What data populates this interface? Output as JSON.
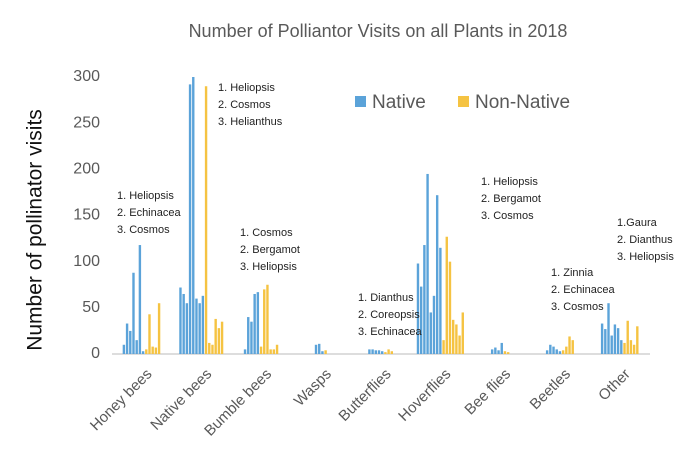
{
  "chart_data": {
    "type": "bar",
    "title": "Number of Polliantor Visits on all Plants in 2018",
    "y_label": "Number  of pollinator visits",
    "categories": [
      "Honey bees",
      "Native bees",
      "Bumble bees",
      "Wasps",
      "Butterflies",
      "Hoverflies",
      "Bee flies",
      "Beetles",
      "Other"
    ],
    "series": [
      {
        "name": "Native",
        "color": "#5ba3d9",
        "values": [
          [
            10,
            33,
            25,
            88,
            15,
            118,
            3
          ],
          [
            72,
            65,
            55,
            292,
            300,
            60,
            55,
            63
          ],
          [
            5,
            40,
            35,
            65,
            67
          ],
          [
            10,
            11,
            3
          ],
          [
            5,
            5,
            4,
            4,
            3
          ],
          [
            98,
            73,
            118,
            195,
            45,
            63,
            172,
            115
          ],
          [
            5,
            7,
            4,
            12
          ],
          [
            4,
            10,
            8,
            5,
            3
          ],
          [
            33,
            27,
            55,
            20,
            32,
            28,
            15
          ]
        ]
      },
      {
        "name": "Non-Native",
        "color": "#f5c342",
        "values": [
          [
            5,
            43,
            8,
            7,
            55
          ],
          [
            290,
            12,
            10,
            38,
            28,
            35
          ],
          [
            8,
            70,
            75,
            5,
            5,
            10
          ],
          [
            4
          ],
          [
            2,
            5,
            3
          ],
          [
            15,
            127,
            100,
            37,
            32,
            20,
            45
          ],
          [
            3,
            2
          ],
          [
            4,
            8,
            19,
            15
          ],
          [
            12,
            36,
            15,
            10,
            30
          ]
        ]
      }
    ],
    "annotations": [
      [
        "1. Heliopsis",
        "2. Echinacea",
        "3. Cosmos"
      ],
      [
        "1. Heliopsis",
        "2. Cosmos",
        "3. Helianthus"
      ],
      [
        "1. Cosmos",
        "2. Bergamot",
        "3. Heliopsis"
      ],
      [
        "1. Dianthus",
        "2. Coreopsis",
        "3. Echinacea"
      ],
      [
        "1. Heliopsis",
        "2. Bergamot",
        "3. Cosmos"
      ],
      [
        "1. Zinnia",
        "2. Echinacea",
        "3. Cosmos"
      ],
      [
        "1.Gaura",
        "2. Dianthus",
        "3. Heliopsis"
      ]
    ],
    "ylim": [
      0,
      300
    ],
    "yticks": [
      0,
      50,
      100,
      150,
      200,
      250,
      300
    ],
    "grid": false,
    "legend": "top"
  }
}
